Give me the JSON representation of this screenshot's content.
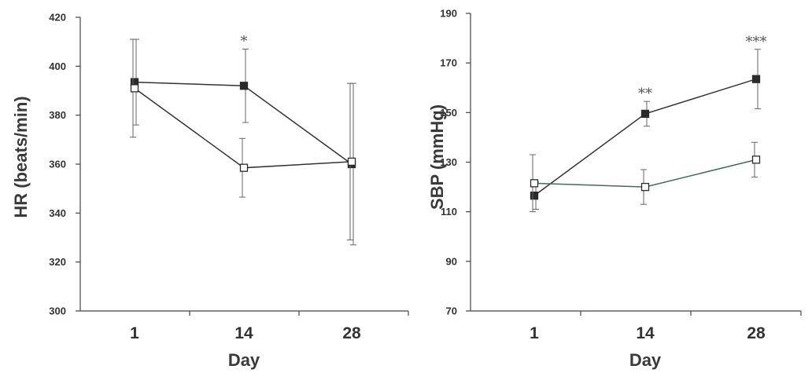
{
  "chart_data": [
    {
      "type": "line",
      "xlabel": "Day",
      "ylabel": "HR (beats/min)",
      "categories": [
        "1",
        "14",
        "28"
      ],
      "ylim": [
        300,
        420
      ],
      "yticks": [
        "300",
        "320",
        "340",
        "360",
        "380",
        "400",
        "420"
      ],
      "series": [
        {
          "marker": "filled-square",
          "color": "#333333",
          "values": [
            393.5,
            392,
            360
          ],
          "errors": [
            17.5,
            15,
            33
          ]
        },
        {
          "marker": "open-square",
          "color": "#333333",
          "values": [
            391,
            358.5,
            361
          ],
          "errors": [
            20,
            12,
            32
          ]
        }
      ],
      "annotations": [
        {
          "category": "14",
          "text": "*"
        }
      ]
    },
    {
      "type": "line",
      "xlabel": "Day",
      "ylabel": "SBP (mmHg)",
      "categories": [
        "1",
        "14",
        "28"
      ],
      "ylim": [
        70,
        190
      ],
      "yticks": [
        "70",
        "90",
        "110",
        "130",
        "150",
        "170",
        "190"
      ],
      "series": [
        {
          "marker": "filled-square",
          "color": "#333333",
          "values": [
            116.5,
            149.5,
            163.5
          ],
          "errors": [
            5.5,
            5,
            12
          ]
        },
        {
          "marker": "open-square",
          "color": "#3f6e5a",
          "values": [
            121.5,
            120,
            131
          ],
          "errors": [
            11.5,
            7,
            7
          ]
        }
      ],
      "annotations": [
        {
          "category": "14",
          "text": "**"
        },
        {
          "category": "28",
          "text": "***"
        }
      ]
    }
  ]
}
